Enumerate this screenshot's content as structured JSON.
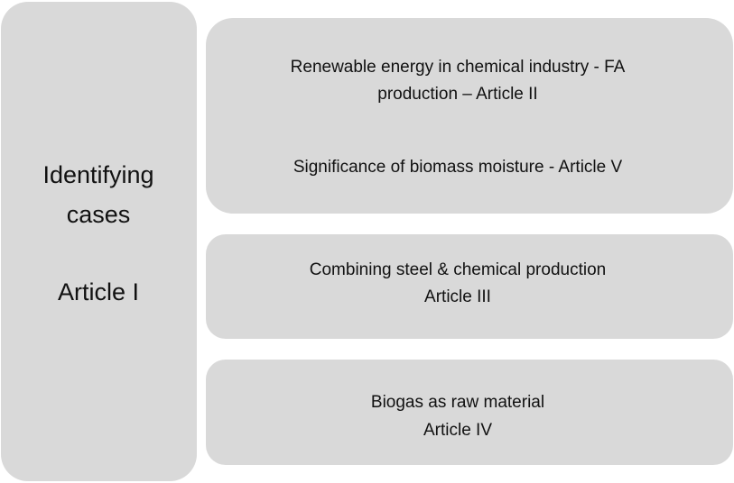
{
  "left": {
    "lines": [
      "Identifying",
      "cases",
      "Article I"
    ]
  },
  "boxes": [
    {
      "lines": [
        "Renewable energy in chemical industry - FA",
        "production – Article II",
        "Significance of biomass moisture - Article V"
      ]
    },
    {
      "lines": [
        "Combining steel & chemical production",
        "Article III"
      ]
    },
    {
      "lines": [
        "Biogas as raw material",
        "Article IV"
      ]
    }
  ]
}
